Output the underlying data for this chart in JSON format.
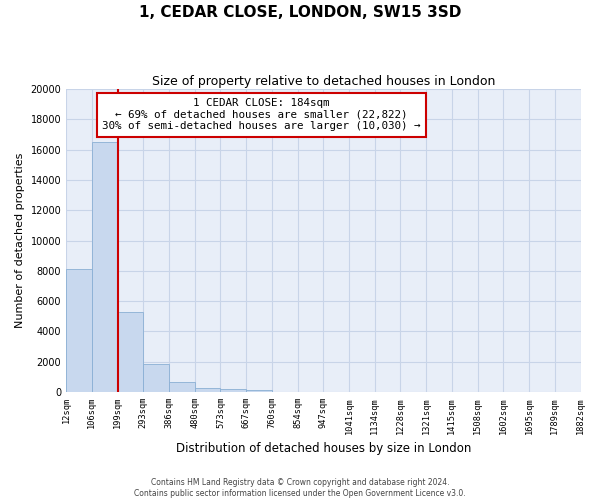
{
  "title": "1, CEDAR CLOSE, LONDON, SW15 3SD",
  "subtitle": "Size of property relative to detached houses in London",
  "xlabel": "Distribution of detached houses by size in London",
  "ylabel": "Number of detached properties",
  "bar_values": [
    8100,
    16500,
    5300,
    1820,
    660,
    270,
    200,
    120,
    0,
    0,
    0,
    0,
    0,
    0,
    0,
    0,
    0,
    0,
    0,
    0
  ],
  "categories": [
    "12sqm",
    "106sqm",
    "199sqm",
    "293sqm",
    "386sqm",
    "480sqm",
    "573sqm",
    "667sqm",
    "760sqm",
    "854sqm",
    "947sqm",
    "1041sqm",
    "1134sqm",
    "1228sqm",
    "1321sqm",
    "1415sqm",
    "1508sqm",
    "1602sqm",
    "1695sqm",
    "1789sqm",
    "1882sqm"
  ],
  "bar_color": "#c8d8ee",
  "bar_edge_color": "#8aafd4",
  "property_line_color": "#cc0000",
  "property_line_x": 2.0,
  "ylim": [
    0,
    20000
  ],
  "yticks": [
    0,
    2000,
    4000,
    6000,
    8000,
    10000,
    12000,
    14000,
    16000,
    18000,
    20000
  ],
  "annotation_title": "1 CEDAR CLOSE: 184sqm",
  "annotation_line1": "← 69% of detached houses are smaller (22,822)",
  "annotation_line2": "30% of semi-detached houses are larger (10,030) →",
  "annotation_box_facecolor": "#ffffff",
  "annotation_box_edgecolor": "#cc0000",
  "footer_line1": "Contains HM Land Registry data © Crown copyright and database right 2024.",
  "footer_line2": "Contains public sector information licensed under the Open Government Licence v3.0.",
  "grid_color": "#c8d4e8",
  "plot_bg_color": "#e8eef8",
  "fig_bg_color": "#ffffff"
}
